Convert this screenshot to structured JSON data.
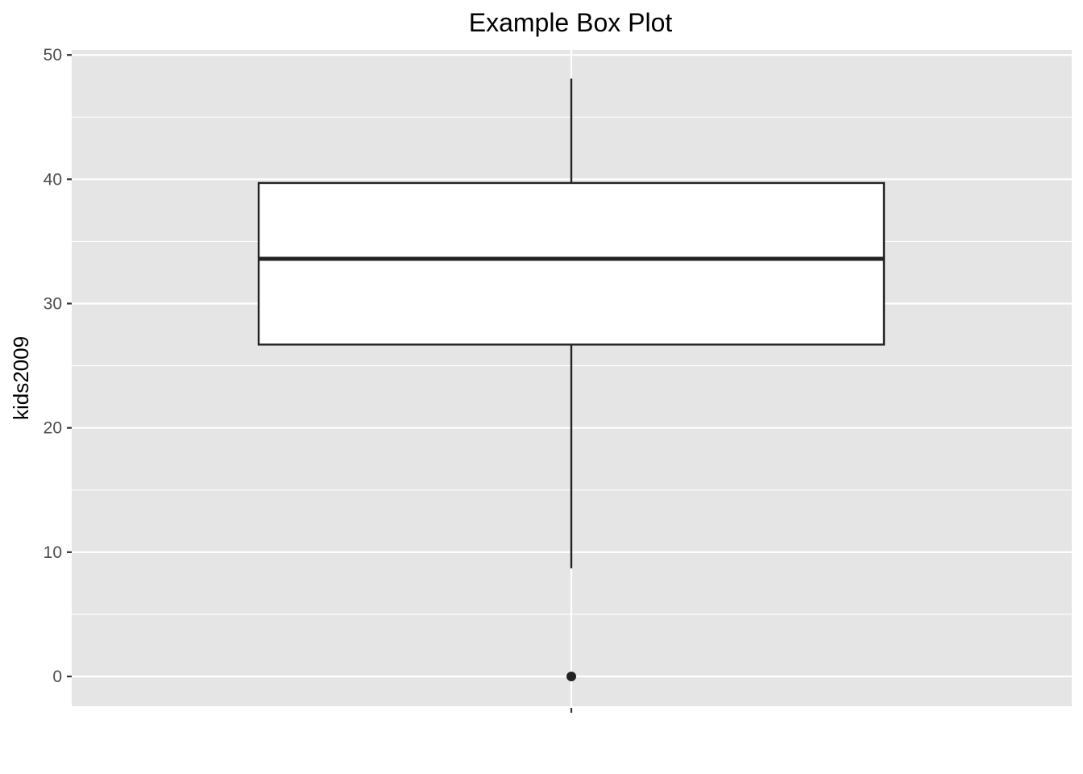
{
  "chart_data": {
    "type": "box",
    "title": "Example Box Plot",
    "xlabel": "",
    "ylabel": "kids2009",
    "ylim": [
      -2.4,
      50.4
    ],
    "yticks": [
      0,
      10,
      20,
      30,
      40,
      50
    ],
    "ytick_labels": [
      "0",
      "10",
      "20",
      "30",
      "40",
      "50"
    ],
    "grid": true,
    "legend": "none",
    "colors": {
      "panel_background": "#e5e5e5",
      "grid": "#ffffff",
      "box_fill": "#ffffff",
      "box_stroke": "#222222"
    },
    "box": {
      "min_whisker": 8.7,
      "q1": 26.7,
      "median": 33.6,
      "q3": 39.7,
      "max_whisker": 48.1,
      "outliers": [
        0
      ]
    }
  }
}
